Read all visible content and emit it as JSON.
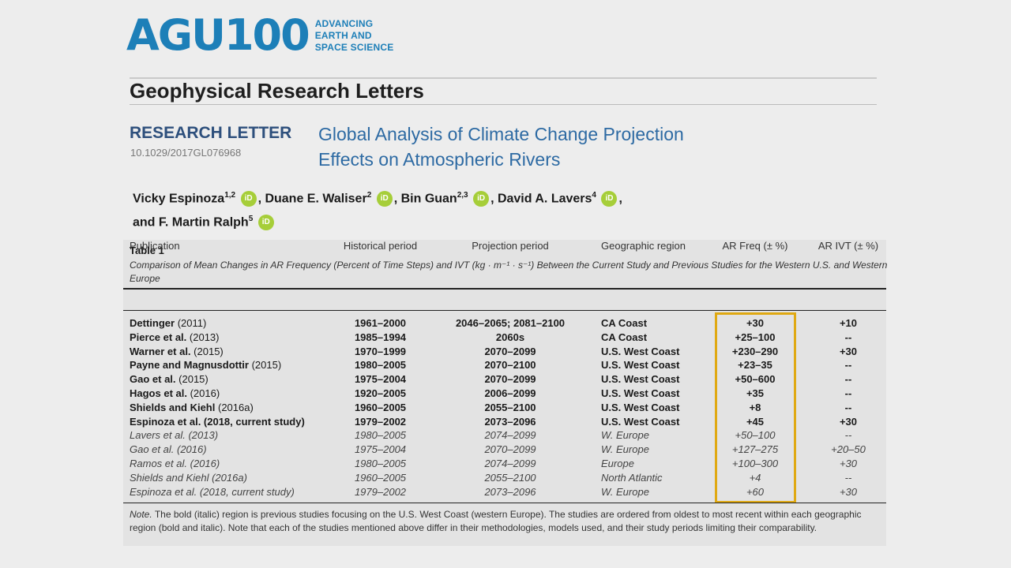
{
  "logo": {
    "mark": "AGU100",
    "tag_lines": [
      "ADVANCING",
      "EARTH AND",
      "SPACE SCIENCE"
    ]
  },
  "journal": "Geophysical Research Letters",
  "article": {
    "kind": "RESEARCH LETTER",
    "doi": "10.1029/2017GL076968",
    "title_lines": [
      "Global Analysis of Climate Change Projection",
      "Effects on Atmospheric Rivers"
    ]
  },
  "authors": [
    {
      "name": "Vicky Espinoza",
      "aff": "1,2"
    },
    {
      "name": "Duane E. Waliser",
      "aff": "2"
    },
    {
      "name": "Bin Guan",
      "aff": "2,3"
    },
    {
      "name": "David A. Lavers",
      "aff": "4"
    },
    {
      "name": "F. Martin Ralph",
      "aff": "5"
    }
  ],
  "authors_conjunction": "and",
  "orcid_label": "iD",
  "table": {
    "caption": "Table 1",
    "description": "Comparison of Mean Changes in AR Frequency (Percent of Time Steps) and IVT (kg · m⁻¹ · s⁻¹) Between the Current Study and Previous Studies for the Western U.S. and Western Europe",
    "headers": [
      "Publication",
      "Historical period",
      "Projection period",
      "Geographic region",
      "AR Freq (± %)",
      "AR IVT (± %)"
    ],
    "rows": [
      {
        "style": "b",
        "author": "Dettinger",
        "year": "(2011)",
        "hist": "1961–2000",
        "proj": "2046–2065; 2081–2100",
        "geo": "CA Coast",
        "freq": "+30",
        "ivt": "+10"
      },
      {
        "style": "b",
        "author": "Pierce et al.",
        "year": "(2013)",
        "hist": "1985–1994",
        "proj": "2060s",
        "geo": "CA Coast",
        "freq": "+25–100",
        "ivt": "--"
      },
      {
        "style": "b",
        "author": "Warner et al.",
        "year": "(2015)",
        "hist": "1970–1999",
        "proj": "2070–2099",
        "geo": "U.S. West Coast",
        "freq": "+230–290",
        "ivt": "+30"
      },
      {
        "style": "b",
        "author": "Payne and Magnusdottir",
        "year": "(2015)",
        "hist": "1980–2005",
        "proj": "2070–2100",
        "geo": "U.S. West Coast",
        "freq": "+23–35",
        "ivt": "--"
      },
      {
        "style": "b",
        "author": "Gao et al.",
        "year": "(2015)",
        "hist": "1975–2004",
        "proj": "2070–2099",
        "geo": "U.S. West Coast",
        "freq": "+50–600",
        "ivt": "--"
      },
      {
        "style": "b",
        "author": "Hagos et al.",
        "year": "(2016)",
        "hist": "1920–2005",
        "proj": "2006–2099",
        "geo": "U.S. West Coast",
        "freq": "+35",
        "ivt": "--"
      },
      {
        "style": "b",
        "author": "Shields and Kiehl",
        "year": "(2016a)",
        "hist": "1960–2005",
        "proj": "2055–2100",
        "geo": "U.S. West Coast",
        "freq": "+8",
        "ivt": "--"
      },
      {
        "style": "b",
        "author": "Espinoza et al. (2018, current study)",
        "year": "",
        "hist": "1979–2002",
        "proj": "2073–2096",
        "geo": "U.S. West Coast",
        "freq": "+45",
        "ivt": "+30"
      },
      {
        "style": "i",
        "author": "Lavers et al.",
        "year": "(2013)",
        "hist": "1980–2005",
        "proj": "2074–2099",
        "geo": "W. Europe",
        "freq": "+50–100",
        "ivt": "--"
      },
      {
        "style": "i",
        "author": "Gao et al.",
        "year": "(2016)",
        "hist": "1975–2004",
        "proj": "2070–2099",
        "geo": "W. Europe",
        "freq": "+127–275",
        "ivt": "+20–50"
      },
      {
        "style": "i",
        "author": "Ramos et al.",
        "year": "(2016)",
        "hist": "1980–2005",
        "proj": "2074–2099",
        "geo": "Europe",
        "freq": "+100–300",
        "ivt": "+30"
      },
      {
        "style": "i",
        "author": "Shields and Kiehl",
        "year": "(2016a)",
        "hist": "1960–2005",
        "proj": "2055–2100",
        "geo": "North Atlantic",
        "freq": "+4",
        "ivt": "--"
      },
      {
        "style": "i",
        "author": "Espinoza et al. (2018, current study)",
        "year": "",
        "hist": "1979–2002",
        "proj": "2073–2096",
        "geo": "W. Europe",
        "freq": "+60",
        "ivt": "+30"
      }
    ],
    "note_label": "Note.",
    "note": "The bold (italic) region is previous studies focusing on the U.S. West Coast (western Europe). The studies are ordered from oldest to most recent within each geographic region (bold and italic). Note that each of the studies mentioned above differ in their methodologies, models used, and their study periods limiting their comparability.",
    "highlight_color": "#e0a912"
  },
  "colors": {
    "agu_blue": "#1d7fb8",
    "title_blue": "#2d6aa3",
    "orcid_green": "#a6ce39"
  }
}
